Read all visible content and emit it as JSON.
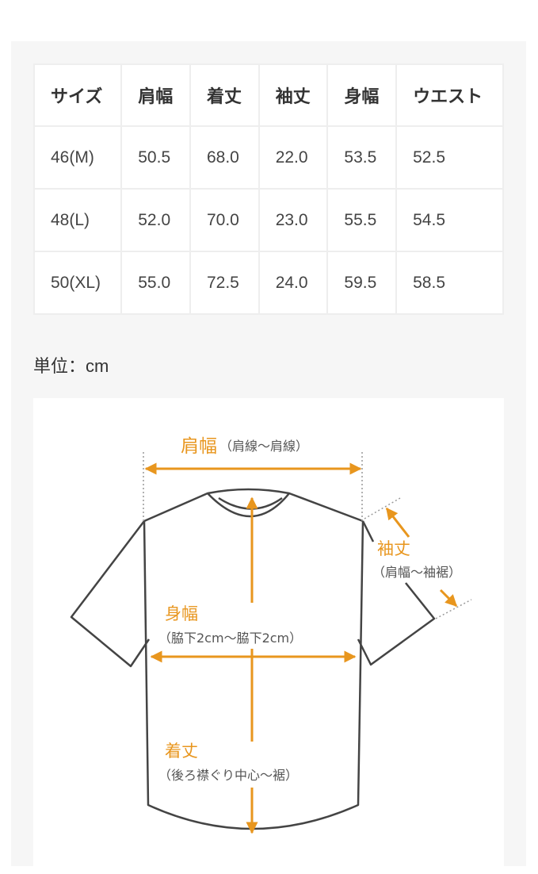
{
  "size_table": {
    "headers": [
      "サイズ",
      "肩幅",
      "着丈",
      "袖丈",
      "身幅",
      "ウエスト"
    ],
    "rows": [
      [
        "46(M)",
        "50.5",
        "68.0",
        "22.0",
        "53.5",
        "52.5"
      ],
      [
        "48(L)",
        "52.0",
        "70.0",
        "23.0",
        "55.5",
        "54.5"
      ],
      [
        "50(XL)",
        "55.0",
        "72.5",
        "24.0",
        "59.5",
        "58.5"
      ]
    ]
  },
  "unit_label": "単位：cm",
  "diagram": {
    "accent_color": "#e8961e",
    "outline_color": "#444444",
    "shoulder": {
      "title": "肩幅",
      "desc": "（肩線〜肩線）"
    },
    "sleeve": {
      "title": "袖丈",
      "desc": "（肩幅〜袖裾）"
    },
    "width": {
      "title": "身幅",
      "desc": "（脇下2cm〜脇下2cm）"
    },
    "length": {
      "title": "着丈",
      "desc": "（後ろ襟ぐり中心〜裾）"
    }
  }
}
